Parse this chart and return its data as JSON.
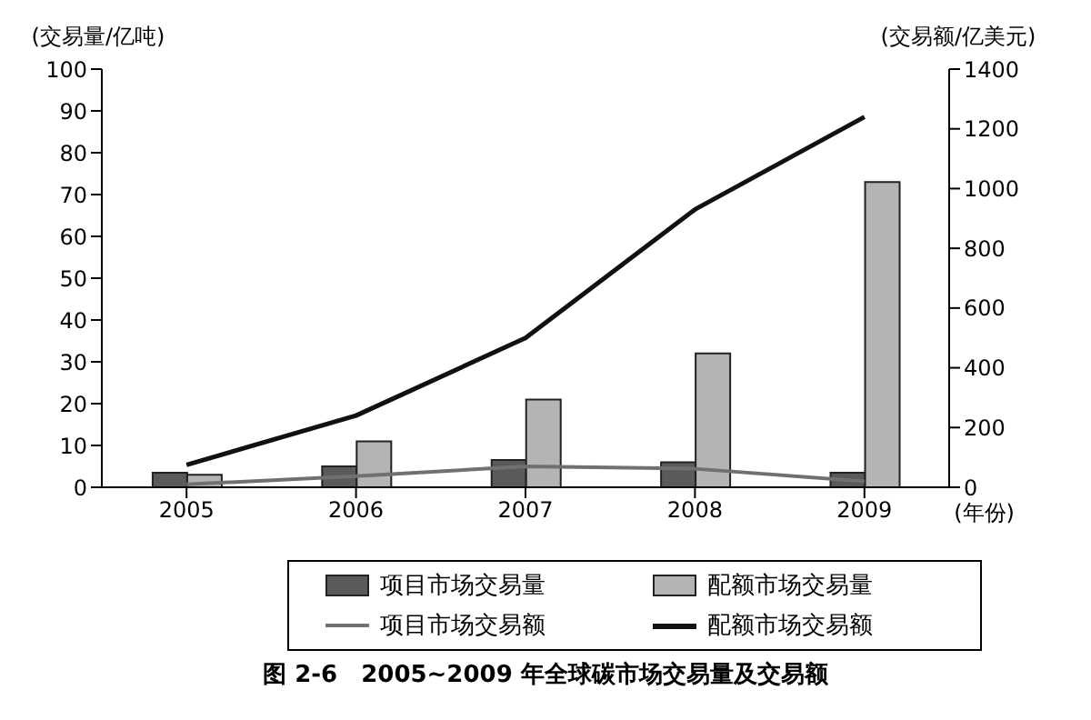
{
  "chart_data": {
    "type": "bar",
    "title": "图 2-6　2005~2009 年全球碳市场交易量及交易额",
    "categories": [
      "2005",
      "2006",
      "2007",
      "2008",
      "2009"
    ],
    "xlabel": "(年份)",
    "ylabel": "(交易量/亿吨)",
    "y2label": "(交易额/亿美元)",
    "ylim": [
      0,
      100
    ],
    "yticks": [
      0,
      10,
      20,
      30,
      40,
      50,
      60,
      70,
      80,
      90,
      100
    ],
    "y2lim": [
      0,
      1400
    ],
    "y2ticks": [
      0,
      200,
      400,
      600,
      800,
      1000,
      1200,
      1400
    ],
    "grid": false,
    "legend": "bottom",
    "marker": "none",
    "line_style": "solid",
    "series": [
      {
        "name": "项目市场交易量",
        "color": "#5a5a5a",
        "values": [
          3.5,
          5,
          6.5,
          6,
          3.5
        ]
      },
      {
        "name": "配额市场交易量",
        "color": "#b4b4b4",
        "values": [
          3,
          11,
          21,
          32,
          73
        ]
      },
      {
        "name": "项目市场交易额",
        "type": "line",
        "axis": "y2",
        "color": "#707070",
        "values": [
          10,
          37,
          70,
          62,
          20
        ]
      },
      {
        "name": "配额市场交易额",
        "type": "line",
        "axis": "y2",
        "color": "#111111",
        "values": [
          75,
          240,
          500,
          930,
          1240
        ]
      }
    ]
  }
}
